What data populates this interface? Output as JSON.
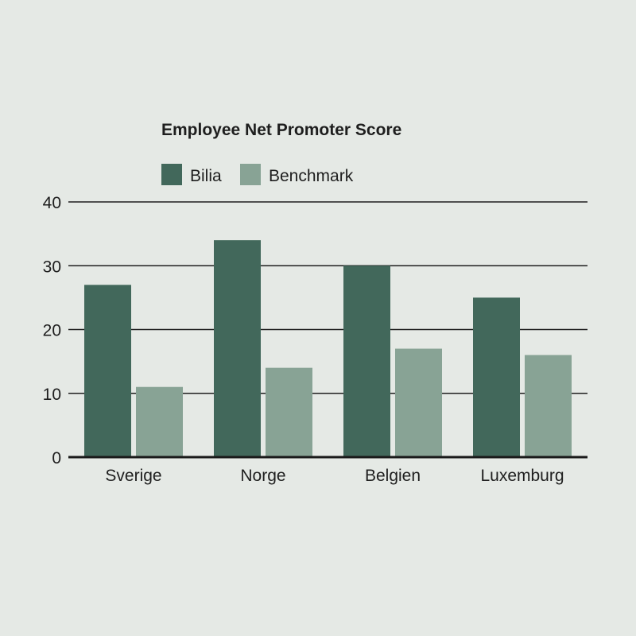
{
  "chart_data": {
    "type": "bar",
    "title": "Employee Net Promoter Score",
    "xlabel": "",
    "ylabel": "",
    "categories": [
      "Sverige",
      "Norge",
      "Belgien",
      "Luxemburg"
    ],
    "series": [
      {
        "name": "Bilia",
        "values": [
          27,
          34,
          30,
          25
        ],
        "color": "#42685b"
      },
      {
        "name": "Benchmark",
        "values": [
          11,
          14,
          17,
          16
        ],
        "color": "#88a395"
      }
    ],
    "ylim": [
      0,
      40
    ],
    "yticks": [
      "0",
      "10",
      "20",
      "30",
      "40"
    ],
    "grid": true,
    "legend_position": "top-left"
  }
}
